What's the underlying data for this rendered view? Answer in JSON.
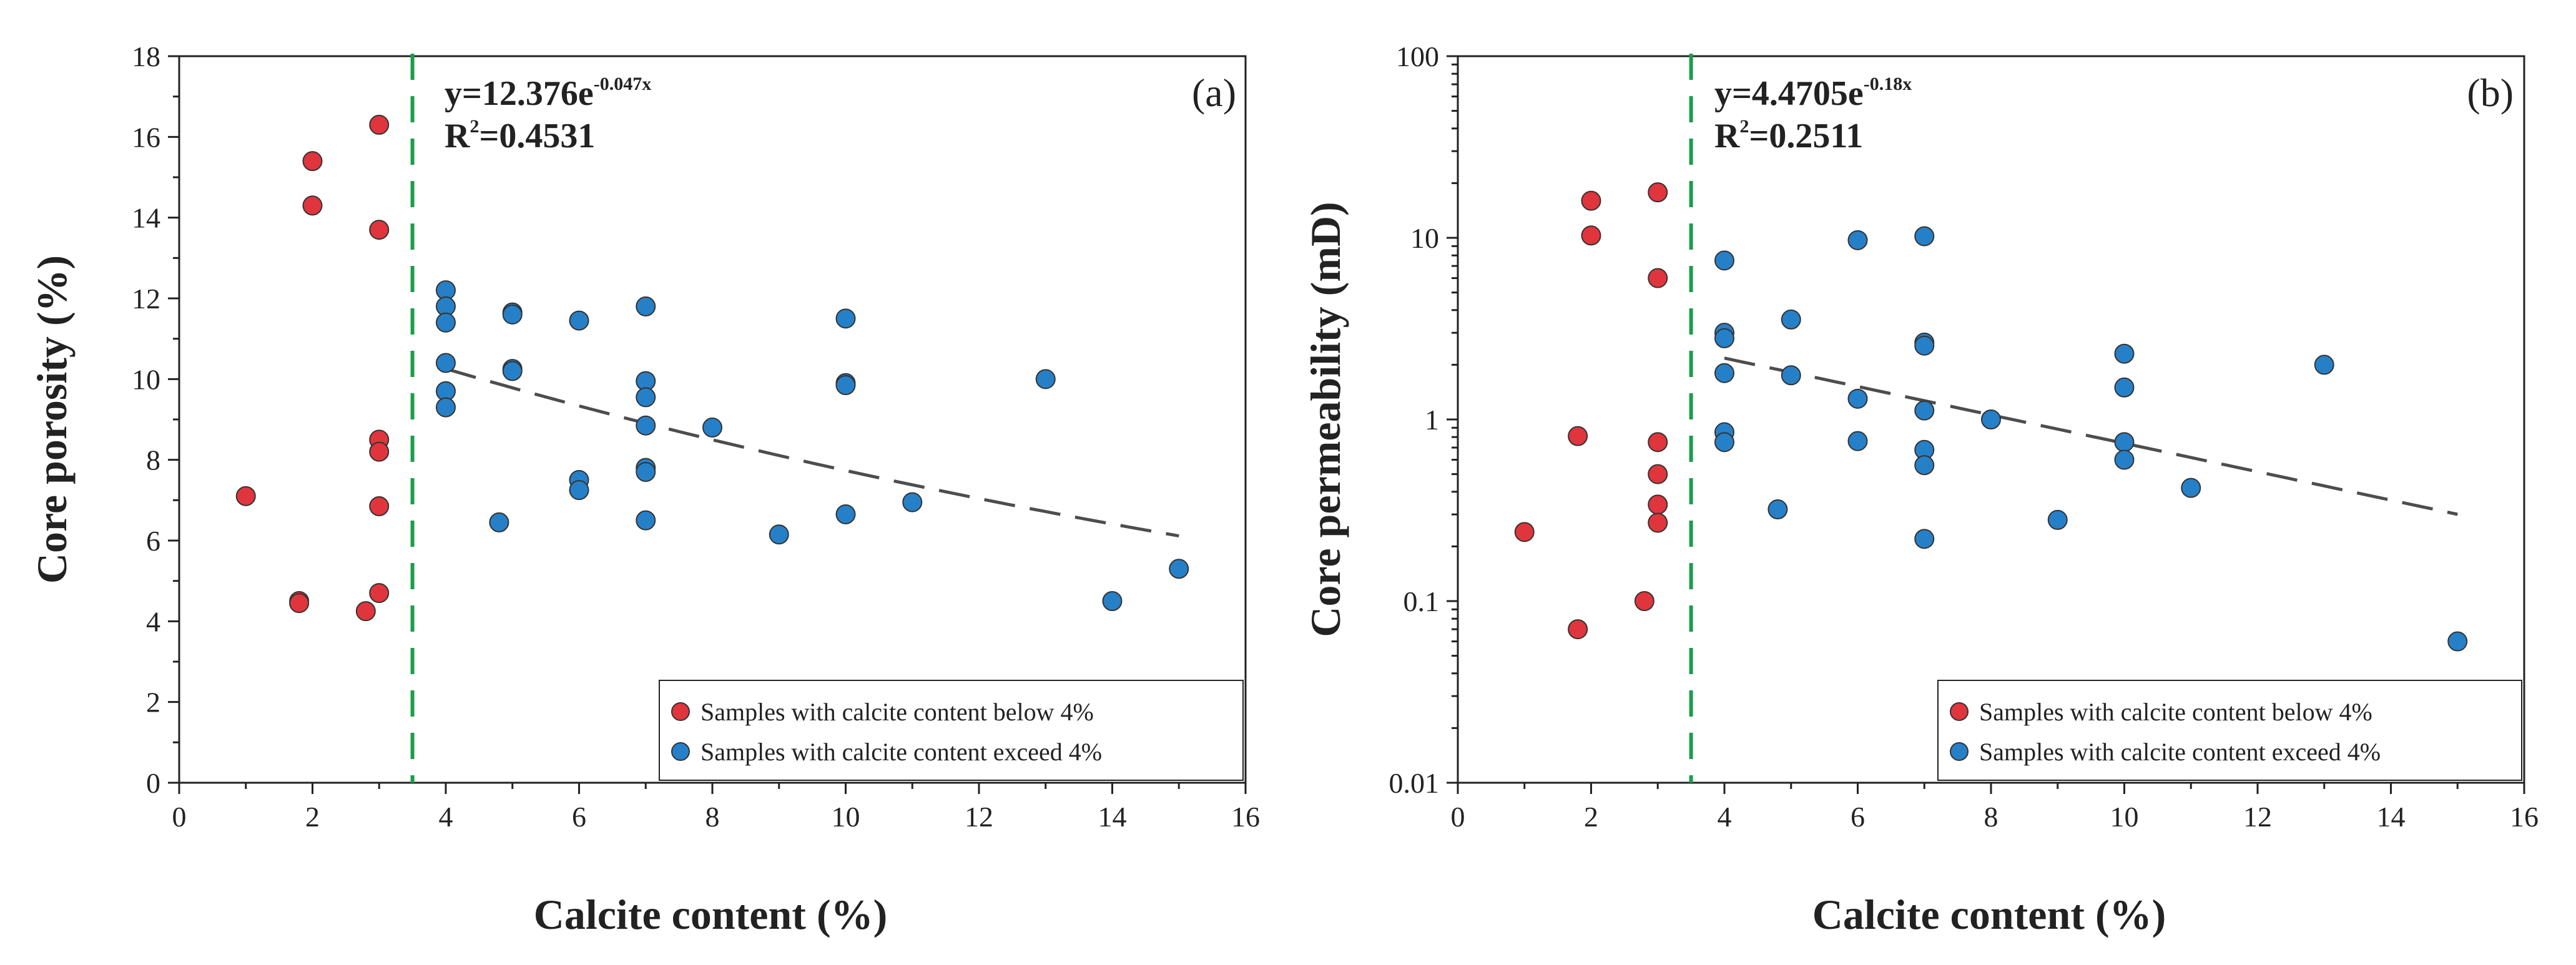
{
  "colors": {
    "below": "#e0353d",
    "exceed": "#2680c8",
    "threshold": "#1a9e4a",
    "fit": "#4d4d4d",
    "axis": "#222222"
  },
  "chart_data": [
    {
      "type": "scatter",
      "panel_label": "(a)",
      "xlabel": "Calcite content (%)",
      "ylabel": "Core porosity (%)",
      "xlim": [
        0,
        16
      ],
      "ylim": [
        0,
        18
      ],
      "yscale": "linear",
      "x_ticks": [
        0,
        2,
        4,
        6,
        8,
        10,
        12,
        14,
        16
      ],
      "y_ticks": [
        0,
        2,
        4,
        6,
        8,
        10,
        12,
        14,
        16,
        18
      ],
      "x_tick_labels": [
        "0",
        "2",
        "4",
        "6",
        "8",
        "10",
        "12",
        "14",
        "16"
      ],
      "y_tick_labels": [
        "0",
        "2",
        "4",
        "6",
        "8",
        "10",
        "12",
        "14",
        "16",
        "18"
      ],
      "threshold_x": 3.5,
      "equation": {
        "prefix": "y=12.376e",
        "exponent": "-0.047x",
        "r2_prefix": "R",
        "r2_sup": "2",
        "r2_value": "=0.4531"
      },
      "fit": {
        "a": 12.376,
        "b": -0.047,
        "x_range": [
          4,
          15
        ]
      },
      "legend_position": "bottom-right",
      "series": [
        {
          "name": "Samples with calcite content below 4%",
          "color_key": "below",
          "points": [
            [
              1,
              7.1
            ],
            [
              1.8,
              4.5
            ],
            [
              1.8,
              4.45
            ],
            [
              2,
              15.4
            ],
            [
              2,
              14.3
            ],
            [
              2.8,
              4.25
            ],
            [
              3,
              16.3
            ],
            [
              3,
              13.7
            ],
            [
              3,
              8.5
            ],
            [
              3,
              8.2
            ],
            [
              3,
              6.85
            ],
            [
              3,
              4.7
            ]
          ]
        },
        {
          "name": "Samples with calcite content exceed 4%",
          "color_key": "exceed",
          "points": [
            [
              4,
              12.2
            ],
            [
              4,
              11.8
            ],
            [
              4,
              11.4
            ],
            [
              4,
              10.4
            ],
            [
              4,
              9.7
            ],
            [
              4,
              9.3
            ],
            [
              4.8,
              6.45
            ],
            [
              5,
              11.65
            ],
            [
              5,
              11.6
            ],
            [
              5,
              10.25
            ],
            [
              5,
              10.2
            ],
            [
              6,
              11.45
            ],
            [
              6,
              7.5
            ],
            [
              6,
              7.25
            ],
            [
              7,
              11.8
            ],
            [
              7,
              9.95
            ],
            [
              7,
              9.55
            ],
            [
              7,
              8.85
            ],
            [
              7,
              7.8
            ],
            [
              7,
              7.7
            ],
            [
              7,
              6.5
            ],
            [
              8,
              8.8
            ],
            [
              9,
              6.15
            ],
            [
              10,
              11.5
            ],
            [
              10,
              9.9
            ],
            [
              10,
              9.85
            ],
            [
              10,
              6.65
            ],
            [
              11,
              6.95
            ],
            [
              13,
              10
            ],
            [
              14,
              4.5
            ],
            [
              15,
              5.3
            ]
          ]
        }
      ]
    },
    {
      "type": "scatter",
      "panel_label": "(b)",
      "xlabel": "Calcite content (%)",
      "ylabel": "Core permeability (mD)",
      "xlim": [
        0,
        16
      ],
      "ylim": [
        0.01,
        100
      ],
      "yscale": "log",
      "x_ticks": [
        0,
        2,
        4,
        6,
        8,
        10,
        12,
        14,
        16
      ],
      "y_ticks": [
        0.01,
        0.1,
        1,
        10,
        100
      ],
      "x_tick_labels": [
        "0",
        "2",
        "4",
        "6",
        "8",
        "10",
        "12",
        "14",
        "16"
      ],
      "y_tick_labels": [
        "0.01",
        "0.1",
        "1",
        "10",
        "100"
      ],
      "threshold_x": 3.5,
      "equation": {
        "prefix": "y=4.4705e",
        "exponent": "-0.18x",
        "r2_prefix": "R",
        "r2_sup": "2",
        "r2_value": "=0.2511"
      },
      "fit": {
        "a": 4.4705,
        "b": -0.18,
        "x_range": [
          4,
          15
        ]
      },
      "legend_position": "bottom-right",
      "series": [
        {
          "name": "Samples with calcite content below 4%",
          "color_key": "below",
          "points": [
            [
              1,
              0.24
            ],
            [
              1.8,
              0.81
            ],
            [
              1.8,
              0.07
            ],
            [
              2,
              16
            ],
            [
              2,
              10.3
            ],
            [
              2.8,
              0.1
            ],
            [
              3,
              17.8
            ],
            [
              3,
              6
            ],
            [
              3,
              0.75
            ],
            [
              3,
              0.5
            ],
            [
              3,
              0.34
            ],
            [
              3,
              0.27
            ]
          ]
        },
        {
          "name": "Samples with calcite content exceed 4%",
          "color_key": "exceed",
          "points": [
            [
              4,
              7.5
            ],
            [
              4,
              3
            ],
            [
              4,
              2.8
            ],
            [
              4,
              1.8
            ],
            [
              4,
              0.85
            ],
            [
              4,
              0.75
            ],
            [
              4.8,
              0.32
            ],
            [
              5,
              3.55
            ],
            [
              5,
              1.75
            ],
            [
              6,
              9.7
            ],
            [
              6,
              1.3
            ],
            [
              6,
              0.76
            ],
            [
              7,
              10.2
            ],
            [
              7,
              2.65
            ],
            [
              7,
              2.55
            ],
            [
              7,
              1.12
            ],
            [
              7,
              0.68
            ],
            [
              7,
              0.56
            ],
            [
              7,
              0.22
            ],
            [
              8,
              1
            ],
            [
              9,
              0.28
            ],
            [
              10,
              2.3
            ],
            [
              10,
              1.5
            ],
            [
              10,
              0.75
            ],
            [
              10,
              0.6
            ],
            [
              11,
              0.42
            ],
            [
              13,
              2
            ],
            [
              15,
              0.06
            ]
          ]
        }
      ]
    }
  ]
}
